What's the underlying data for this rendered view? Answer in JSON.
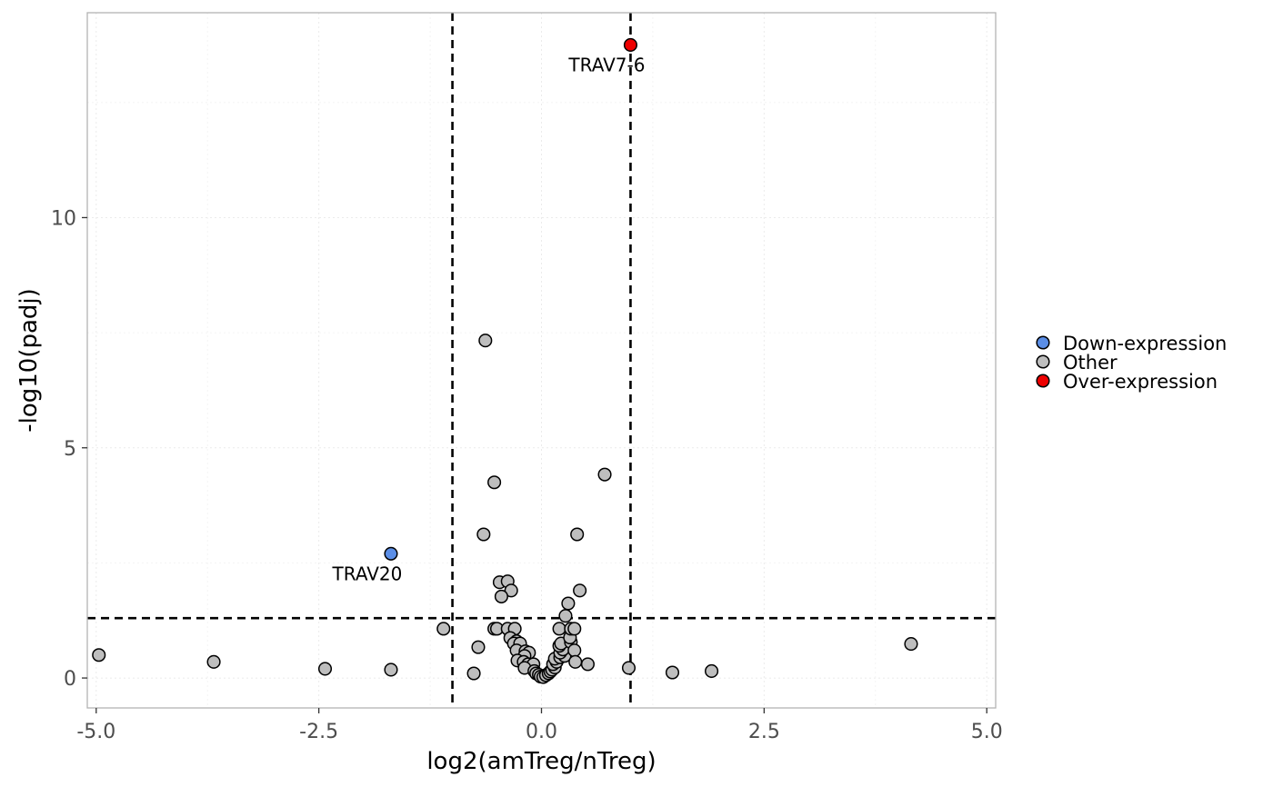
{
  "chart_data": {
    "type": "scatter",
    "title": "",
    "xlabel": "log2(amTreg/nTreg)",
    "ylabel": "-log10(padj)",
    "xlim": [
      -5.1,
      5.1
    ],
    "ylim": [
      -0.65,
      14.45
    ],
    "x_ticks": [
      -5.0,
      -2.5,
      0.0,
      2.5,
      5.0
    ],
    "x_tick_labels": [
      "-5.0",
      "-2.5",
      "0.0",
      "2.5",
      "5.0"
    ],
    "y_ticks": [
      0,
      5,
      10
    ],
    "y_tick_labels": [
      "0",
      "5",
      "10"
    ],
    "grid": true,
    "legend_position": "right",
    "thresholds": {
      "x": [
        -1,
        1
      ],
      "y": 1.3
    },
    "colors": {
      "Down-expression": "#5b8ee6",
      "Other": "#bebebe",
      "Over-expression": "#ee0000"
    },
    "legend": [
      "Down-expression",
      "Other",
      "Over-expression"
    ],
    "points": [
      {
        "x": 1.0,
        "y": 13.75,
        "group": "Over-expression",
        "label": "TRAV7-6"
      },
      {
        "x": -1.69,
        "y": 2.7,
        "group": "Down-expression",
        "label": "TRAV20"
      },
      {
        "x": -4.97,
        "y": 0.5,
        "group": "Other"
      },
      {
        "x": -3.68,
        "y": 0.35,
        "group": "Other"
      },
      {
        "x": -2.43,
        "y": 0.2,
        "group": "Other"
      },
      {
        "x": -1.69,
        "y": 0.18,
        "group": "Other"
      },
      {
        "x": -1.1,
        "y": 1.07,
        "group": "Other"
      },
      {
        "x": -0.76,
        "y": 0.1,
        "group": "Other"
      },
      {
        "x": -0.71,
        "y": 0.67,
        "group": "Other"
      },
      {
        "x": -0.63,
        "y": 7.33,
        "group": "Other"
      },
      {
        "x": -0.53,
        "y": 4.25,
        "group": "Other"
      },
      {
        "x": -0.65,
        "y": 3.12,
        "group": "Other"
      },
      {
        "x": -0.47,
        "y": 2.08,
        "group": "Other"
      },
      {
        "x": -0.38,
        "y": 2.1,
        "group": "Other"
      },
      {
        "x": -0.34,
        "y": 1.9,
        "group": "Other"
      },
      {
        "x": -0.45,
        "y": 1.77,
        "group": "Other"
      },
      {
        "x": -0.53,
        "y": 1.07,
        "group": "Other"
      },
      {
        "x": -0.5,
        "y": 1.07,
        "group": "Other"
      },
      {
        "x": -0.38,
        "y": 1.07,
        "group": "Other"
      },
      {
        "x": -0.3,
        "y": 1.07,
        "group": "Other"
      },
      {
        "x": -0.35,
        "y": 0.87,
        "group": "Other"
      },
      {
        "x": -0.28,
        "y": 0.8,
        "group": "Other"
      },
      {
        "x": -0.31,
        "y": 0.75,
        "group": "Other"
      },
      {
        "x": -0.24,
        "y": 0.75,
        "group": "Other"
      },
      {
        "x": -0.28,
        "y": 0.6,
        "group": "Other"
      },
      {
        "x": -0.18,
        "y": 0.58,
        "group": "Other"
      },
      {
        "x": -0.14,
        "y": 0.55,
        "group": "Other"
      },
      {
        "x": -0.19,
        "y": 0.48,
        "group": "Other"
      },
      {
        "x": -0.27,
        "y": 0.38,
        "group": "Other"
      },
      {
        "x": -0.2,
        "y": 0.35,
        "group": "Other"
      },
      {
        "x": -0.15,
        "y": 0.3,
        "group": "Other"
      },
      {
        "x": -0.09,
        "y": 0.3,
        "group": "Other"
      },
      {
        "x": -0.19,
        "y": 0.22,
        "group": "Other"
      },
      {
        "x": -0.08,
        "y": 0.15,
        "group": "Other"
      },
      {
        "x": -0.06,
        "y": 0.1,
        "group": "Other"
      },
      {
        "x": -0.03,
        "y": 0.07,
        "group": "Other"
      },
      {
        "x": -0.01,
        "y": 0.03,
        "group": "Other"
      },
      {
        "x": 0.02,
        "y": 0.02,
        "group": "Other"
      },
      {
        "x": 0.05,
        "y": 0.06,
        "group": "Other"
      },
      {
        "x": 0.08,
        "y": 0.1,
        "group": "Other"
      },
      {
        "x": 0.1,
        "y": 0.14,
        "group": "Other"
      },
      {
        "x": 0.12,
        "y": 0.18,
        "group": "Other"
      },
      {
        "x": 0.15,
        "y": 0.23,
        "group": "Other"
      },
      {
        "x": 0.13,
        "y": 0.3,
        "group": "Other"
      },
      {
        "x": 0.17,
        "y": 0.35,
        "group": "Other"
      },
      {
        "x": 0.15,
        "y": 0.42,
        "group": "Other"
      },
      {
        "x": 0.21,
        "y": 0.45,
        "group": "Other"
      },
      {
        "x": 0.26,
        "y": 0.48,
        "group": "Other"
      },
      {
        "x": 0.21,
        "y": 0.55,
        "group": "Other"
      },
      {
        "x": 0.24,
        "y": 0.62,
        "group": "Other"
      },
      {
        "x": 0.2,
        "y": 0.7,
        "group": "Other"
      },
      {
        "x": 0.22,
        "y": 0.75,
        "group": "Other"
      },
      {
        "x": 0.33,
        "y": 0.78,
        "group": "Other"
      },
      {
        "x": 0.32,
        "y": 0.88,
        "group": "Other"
      },
      {
        "x": 0.2,
        "y": 1.07,
        "group": "Other"
      },
      {
        "x": 0.33,
        "y": 1.07,
        "group": "Other"
      },
      {
        "x": 0.37,
        "y": 1.07,
        "group": "Other"
      },
      {
        "x": 0.27,
        "y": 1.35,
        "group": "Other"
      },
      {
        "x": 0.3,
        "y": 1.62,
        "group": "Other"
      },
      {
        "x": 0.43,
        "y": 1.9,
        "group": "Other"
      },
      {
        "x": 0.4,
        "y": 3.12,
        "group": "Other"
      },
      {
        "x": 0.71,
        "y": 4.42,
        "group": "Other"
      },
      {
        "x": 0.37,
        "y": 0.6,
        "group": "Other"
      },
      {
        "x": 0.38,
        "y": 0.35,
        "group": "Other"
      },
      {
        "x": 0.52,
        "y": 0.3,
        "group": "Other"
      },
      {
        "x": 0.98,
        "y": 0.22,
        "group": "Other"
      },
      {
        "x": 1.47,
        "y": 0.12,
        "group": "Other"
      },
      {
        "x": 1.91,
        "y": 0.15,
        "group": "Other"
      },
      {
        "x": 4.15,
        "y": 0.74,
        "group": "Other"
      }
    ]
  }
}
